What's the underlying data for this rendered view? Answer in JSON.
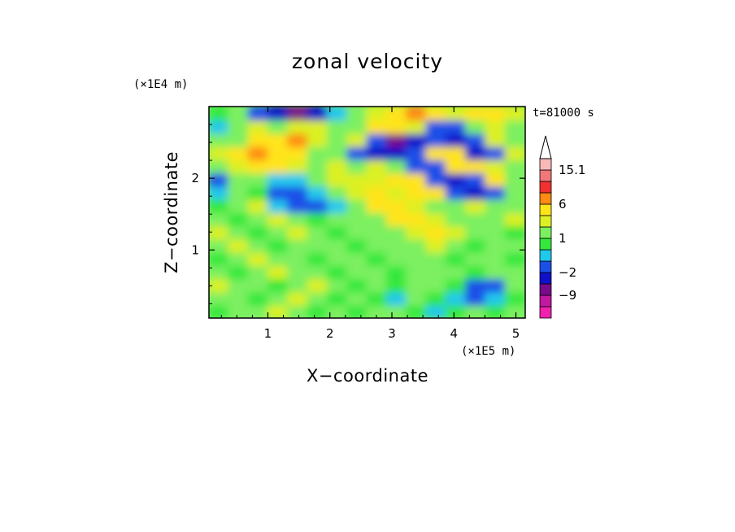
{
  "chart_data": {
    "type": "heatmap",
    "title": "zonal velocity",
    "xlabel": "X−coordinate",
    "ylabel": "Z−coordinate",
    "x_multiplier": "(×1E5 m)",
    "y_multiplier": "(×1E4 m)",
    "time_label": "t=81000 s",
    "xlim": [
      0.05,
      5.15
    ],
    "ylim": [
      0.05,
      3.0
    ],
    "x_ticks": [
      "1",
      "2",
      "3",
      "4",
      "5"
    ],
    "y_ticks": [
      "1",
      "2"
    ],
    "colorbar": {
      "levels": [
        -15,
        -12,
        -9,
        -6,
        -2,
        -1,
        0,
        1,
        2,
        3,
        6,
        9,
        12,
        15.1
      ],
      "tick_labels": [
        "15.1",
        "6",
        "1",
        "−2",
        "−9"
      ],
      "colors": [
        "#f020b0",
        "#c018a0",
        "#7a0a8c",
        "#1010c8",
        "#1a50e8",
        "#20c8ec",
        "#34e83c",
        "#7cf060",
        "#dcf024",
        "#ffe41a",
        "#ff8a14",
        "#f23030",
        "#f07878",
        "#f8b8b8"
      ],
      "extend_top": true
    },
    "values_z_rows_low_to_high": [
      [
        0,
        1,
        1,
        2,
        1,
        0,
        1,
        0,
        1,
        1,
        0,
        -1,
        0,
        1,
        0,
        1
      ],
      [
        1,
        1,
        0,
        1,
        2,
        1,
        0,
        1,
        0,
        -1,
        1,
        0,
        -1,
        -2,
        -1,
        0
      ],
      [
        2,
        1,
        1,
        0,
        1,
        2,
        1,
        0,
        1,
        0,
        1,
        1,
        0,
        -2,
        -2,
        1
      ],
      [
        1,
        0,
        1,
        2,
        1,
        1,
        0,
        1,
        1,
        0,
        1,
        1,
        1,
        0,
        1,
        1
      ],
      [
        0,
        1,
        2,
        1,
        1,
        0,
        1,
        1,
        0,
        1,
        1,
        1,
        0,
        1,
        1,
        0
      ],
      [
        1,
        2,
        1,
        0,
        1,
        1,
        1,
        0,
        1,
        1,
        1,
        2,
        1,
        0,
        1,
        1
      ],
      [
        2,
        1,
        0,
        1,
        2,
        1,
        0,
        1,
        1,
        1,
        2,
        3,
        2,
        1,
        1,
        0
      ],
      [
        1,
        0,
        1,
        2,
        1,
        0,
        1,
        1,
        1,
        3,
        3,
        2,
        1,
        1,
        1,
        2
      ],
      [
        0,
        1,
        2,
        -1,
        -2,
        -2,
        -1,
        1,
        3,
        3,
        2,
        1,
        1,
        2,
        1,
        1
      ],
      [
        -1,
        1,
        0,
        -2,
        -2,
        -1,
        1,
        2,
        3,
        2,
        3,
        3,
        -2,
        -6,
        -2,
        1
      ],
      [
        -2,
        1,
        1,
        -1,
        -1,
        1,
        2,
        2,
        2,
        3,
        3,
        -2,
        -6,
        -2,
        3,
        1
      ],
      [
        1,
        2,
        3,
        3,
        2,
        1,
        2,
        1,
        2,
        1,
        -2,
        -2,
        3,
        3,
        2,
        1
      ],
      [
        2,
        3,
        6,
        3,
        3,
        1,
        1,
        -2,
        -6,
        -6,
        -2,
        3,
        3,
        -6,
        -2,
        2
      ],
      [
        1,
        1,
        3,
        3,
        6,
        2,
        1,
        2,
        -2,
        -9,
        -6,
        -2,
        -6,
        -2,
        2,
        1
      ],
      [
        -1,
        1,
        2,
        1,
        2,
        2,
        1,
        1,
        3,
        3,
        2,
        -2,
        -2,
        1,
        2,
        1
      ],
      [
        0,
        1,
        -2,
        -6,
        -9,
        -6,
        -1,
        1,
        2,
        3,
        6,
        3,
        2,
        3,
        3,
        2
      ]
    ]
  }
}
